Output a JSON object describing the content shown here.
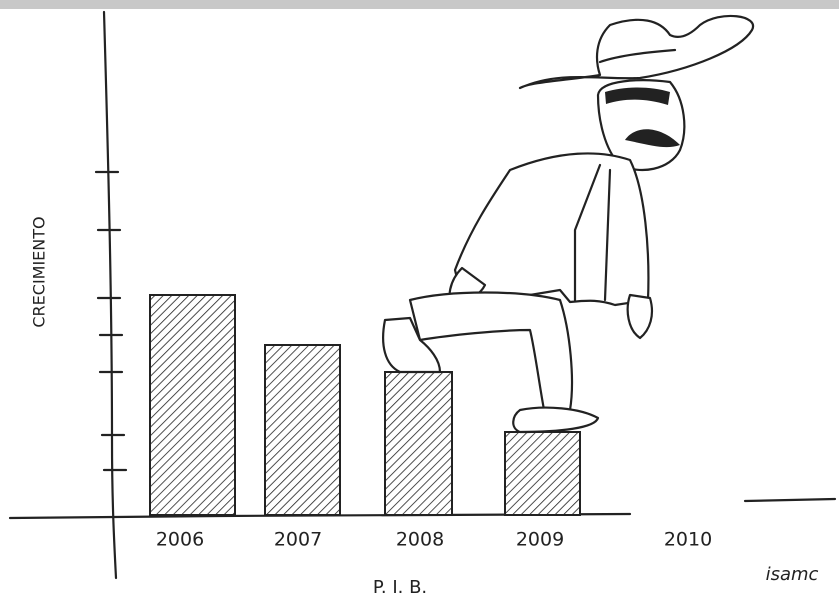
{
  "chart_data": {
    "type": "bar",
    "y_label": "CRECIMIENTO",
    "x_label": "P. I. B.",
    "categories": [
      "2006",
      "2007",
      "2008",
      "2009",
      "2010"
    ],
    "values": [
      220,
      170,
      143,
      83,
      null
    ],
    "color": "#222222",
    "ylim": [
      0,
      500
    ],
    "signature": "isamc"
  }
}
